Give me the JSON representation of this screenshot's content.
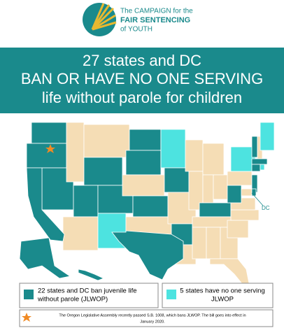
{
  "logo": {
    "lines": [
      "The CAMPAIGN for the",
      "FAIR SENTENCING",
      "of YOUTH"
    ]
  },
  "banner": {
    "lines": [
      "27 states and DC",
      "BAN OR HAVE NO ONE SERVING",
      "life without parole for children"
    ]
  },
  "map": {
    "dc_label": "DC"
  },
  "legend": {
    "items": [
      {
        "lines": [
          "22 states and DC ban juvenile life",
          "without parole (JLWOP)"
        ]
      },
      {
        "lines": [
          "5 states have no one serving",
          "JLWOP"
        ]
      }
    ]
  },
  "footnote": {
    "lines": [
      "The Oregon Legislative Assembly recently passed S.B. 1008, which bans JLWOP. The bill goes into effect in",
      "January 2020."
    ]
  }
}
